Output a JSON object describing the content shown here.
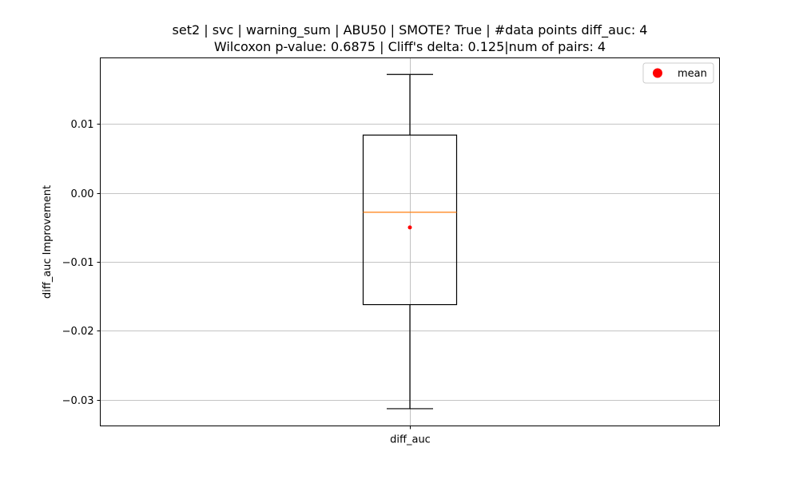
{
  "chart_data": {
    "type": "box",
    "title_line1": "set2 | svc | warning_sum | ABU50 | SMOTE? True | #data points diff_auc: 4",
    "title_line2": "Wilcoxon p-value: 0.6875 | Cliff's delta: 0.125|num of pairs: 4",
    "xlabel": "",
    "ylabel": "diff_auc Improvement",
    "categories": [
      "diff_auc"
    ],
    "ylim": [
      -0.0338,
      0.0196
    ],
    "yticks": [
      {
        "value": 0.01,
        "label": "0.01"
      },
      {
        "value": 0.0,
        "label": "0.00"
      },
      {
        "value": -0.01,
        "label": "−0.01"
      },
      {
        "value": -0.02,
        "label": "−0.02"
      },
      {
        "value": -0.03,
        "label": "−0.03"
      }
    ],
    "grid": true,
    "box": {
      "whisker_high": 0.0172,
      "q3": 0.0084,
      "median": -0.0028,
      "q1": -0.0162,
      "whisker_low": -0.0313,
      "mean": -0.005
    },
    "legend": {
      "label": "mean",
      "placement": "top-right"
    },
    "colors": {
      "box": "#000000",
      "median": "#ff7f0e",
      "mean": "#ff0000",
      "grid": "#b0b0b0"
    }
  }
}
